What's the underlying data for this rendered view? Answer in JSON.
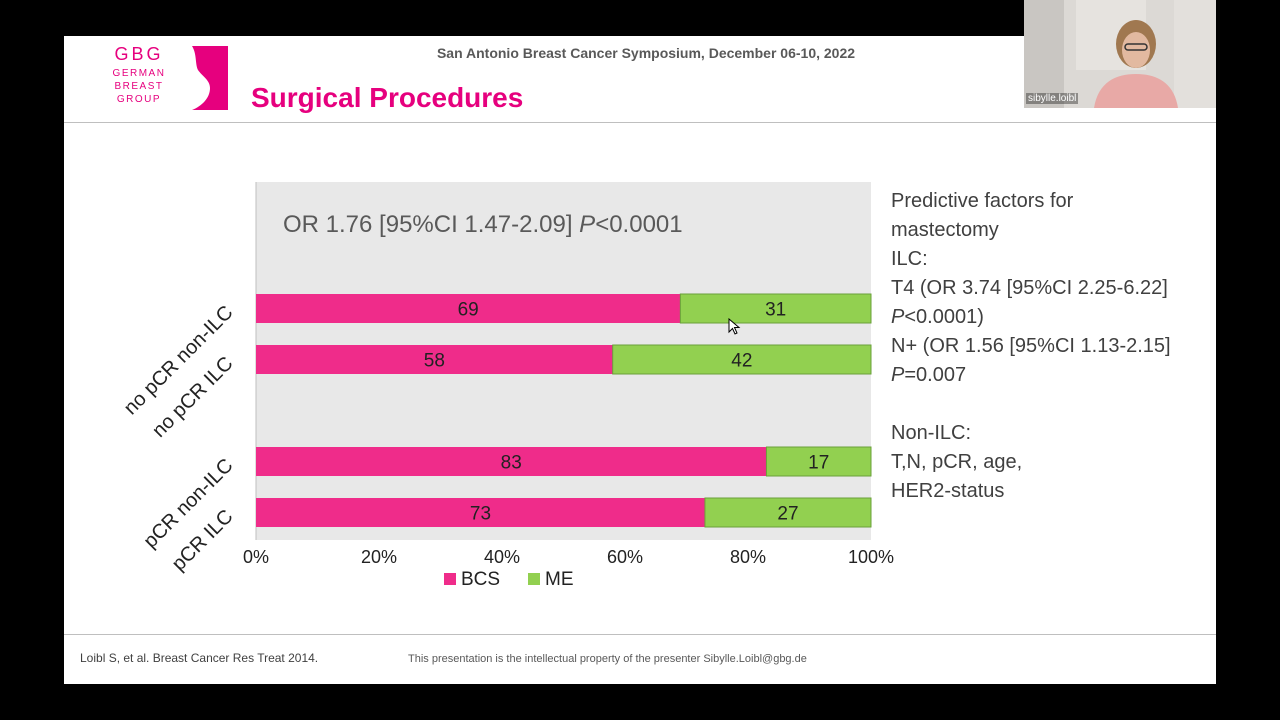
{
  "header": {
    "logo_line1": "GBG",
    "logo_line2": "GERMAN",
    "logo_line3": "BREAST",
    "logo_line4": "GROUP",
    "conference": "San Antonio Breast Cancer Symposium, December 06-10, 2022",
    "title": "Surgical Procedures"
  },
  "colors": {
    "brand": "#e6007e",
    "bcs": "#ef2c8a",
    "me": "#92d050",
    "plot_bg": "#e8e8e8"
  },
  "chart_data": {
    "type": "bar",
    "orientation": "horizontal",
    "stacked": true,
    "percent": true,
    "annotation": {
      "prefix": "OR 1.76 [95%CI 1.47-2.09] ",
      "p_letter": "P",
      "suffix": "<0.0001"
    },
    "groups": [
      {
        "categories": [
          "no pCR non-ILC",
          "no pCR ILC"
        ]
      },
      {
        "categories": [
          "pCR non-ILC",
          "pCR ILC"
        ]
      }
    ],
    "categories": [
      "no pCR non-ILC",
      "no pCR ILC",
      "pCR non-ILC",
      "pCR ILC"
    ],
    "series": [
      {
        "name": "BCS",
        "values": [
          69,
          58,
          83,
          73
        ]
      },
      {
        "name": "ME",
        "values": [
          31,
          42,
          17,
          27
        ]
      }
    ],
    "x_ticks": [
      "0%",
      "20%",
      "40%",
      "60%",
      "80%",
      "100%"
    ],
    "xlim": [
      0,
      100
    ],
    "legend_position": "bottom",
    "grid": false
  },
  "side_panel": {
    "line1": "Predictive factors for",
    "line2": "mastectomy",
    "line3": "ILC:",
    "line4": "T4 (OR 3.74 [95%CI 2.25-6.22]",
    "line5_p": "P",
    "line5_rest": "<0.0001)",
    "line6": "N+ (OR 1.56 [95%CI 1.13-2.15]",
    "line7_p": "P",
    "line7_rest": "=0.007",
    "line8": "Non-ILC:",
    "line9": "T,N, pCR, age,",
    "line10": "HER2-status"
  },
  "footer": {
    "citation": "Loibl S, et al. Breast Cancer Res Treat 2014.",
    "ip_note": "This presentation is the intellectual property of the presenter Sibylle.Loibl@gbg.de"
  },
  "webcam": {
    "participant_name": "sibylle.loibl"
  }
}
